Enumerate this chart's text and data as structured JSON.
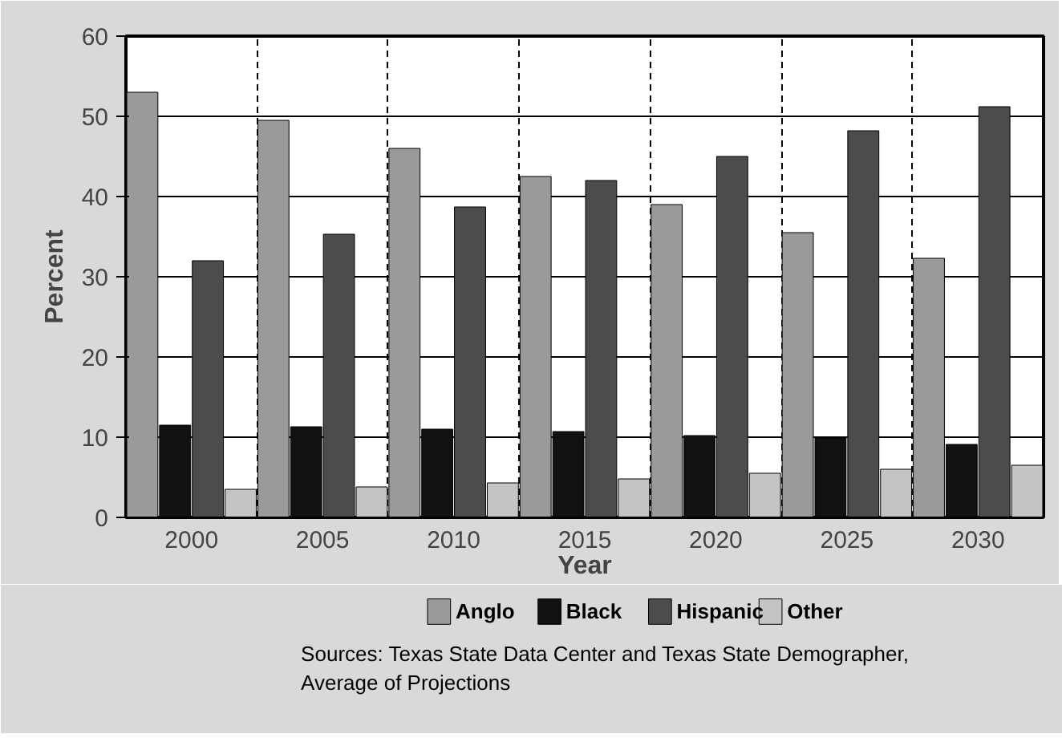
{
  "chart_data": {
    "type": "bar",
    "xlabel": "Year",
    "ylabel": "Percent",
    "categories": [
      "2000",
      "2005",
      "2010",
      "2015",
      "2020",
      "2025",
      "2030"
    ],
    "series": [
      {
        "name": "Anglo",
        "color": "#9a9a9a",
        "values": [
          53,
          49.5,
          46,
          42.5,
          39,
          35.5,
          32.3
        ]
      },
      {
        "name": "Black",
        "color": "#111111",
        "values": [
          11.5,
          11.3,
          11,
          10.7,
          10.2,
          9.9,
          9.1
        ]
      },
      {
        "name": "Hispanic",
        "color": "#4c4c4c",
        "values": [
          32,
          35.3,
          38.7,
          42,
          45,
          48.2,
          51.2
        ]
      },
      {
        "name": "Other",
        "color": "#c4c4c4",
        "values": [
          3.5,
          3.8,
          4.3,
          4.8,
          5.5,
          6,
          6.5
        ]
      }
    ],
    "ylim": [
      0,
      60
    ],
    "yticks": [
      0,
      10,
      20,
      30,
      40,
      50,
      60
    ],
    "grid": true,
    "legend": "bottom",
    "annotations": [
      "Sources: Texas State Data Center and Texas State Demographer,\nAverage of Projections"
    ]
  }
}
